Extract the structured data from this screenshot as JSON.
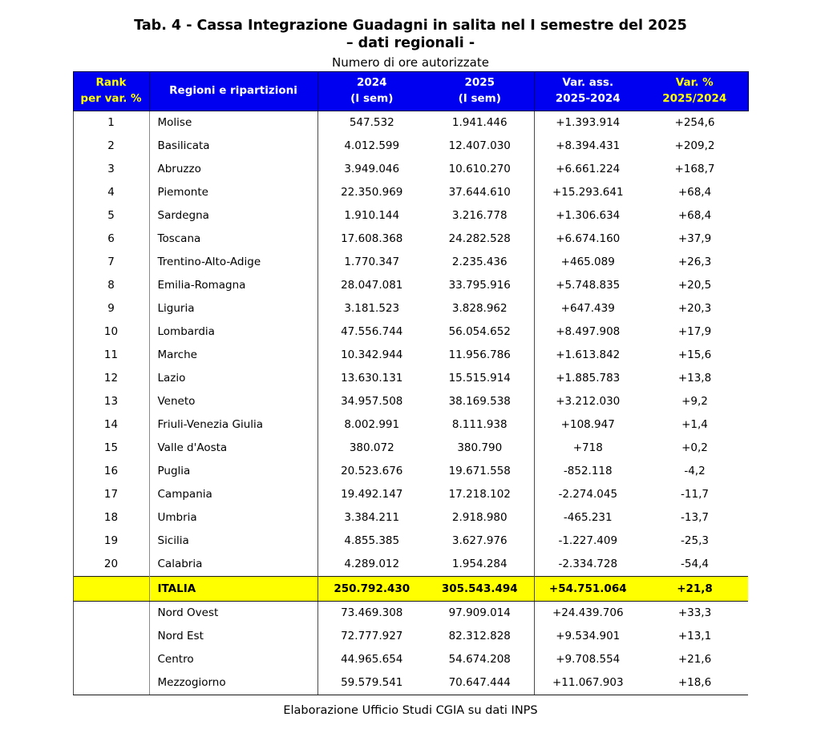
{
  "title_line1": "Tab. 4 - Cassa Integrazione Guadagni in salita nel I semestre del 2025",
  "title_line2": "– dati regionali -",
  "subtitle": "Numero di ore autorizzate",
  "source": "Elaborazione Ufficio Studi CGIA su dati INPS",
  "colors": {
    "header_bg": "#0000F0",
    "header_text": "#FFFFFF",
    "header_accent_text": "#FFFF00",
    "total_row_bg": "#FFFF00",
    "body_text": "#000000",
    "border": "#4A4A4A"
  },
  "chart_data": {
    "type": "table",
    "title": "Tab. 4 - Cassa Integrazione Guadagni in salita nel I semestre del 2025 – dati regionali -",
    "units": "Numero di ore autorizzate",
    "source": "Elaborazione Ufficio Studi CGIA su dati INPS",
    "header": {
      "rank": [
        "Rank",
        "per var. %"
      ],
      "region": "Regioni e ripartizioni",
      "y2024": [
        "2024",
        "(I sem)"
      ],
      "y2025": [
        "2025",
        "(I sem)"
      ],
      "var_ass": [
        "Var. ass.",
        "2025-2024"
      ],
      "var_pct": [
        "Var. %",
        "2025/2024"
      ]
    },
    "region_rows": [
      {
        "rank": "1",
        "name": "Molise",
        "y2024": "547.532",
        "y2025": "1.941.446",
        "var_ass": "+1.393.914",
        "var_pct": "+254,6"
      },
      {
        "rank": "2",
        "name": "Basilicata",
        "y2024": "4.012.599",
        "y2025": "12.407.030",
        "var_ass": "+8.394.431",
        "var_pct": "+209,2"
      },
      {
        "rank": "3",
        "name": "Abruzzo",
        "y2024": "3.949.046",
        "y2025": "10.610.270",
        "var_ass": "+6.661.224",
        "var_pct": "+168,7"
      },
      {
        "rank": "4",
        "name": "Piemonte",
        "y2024": "22.350.969",
        "y2025": "37.644.610",
        "var_ass": "+15.293.641",
        "var_pct": "+68,4"
      },
      {
        "rank": "5",
        "name": "Sardegna",
        "y2024": "1.910.144",
        "y2025": "3.216.778",
        "var_ass": "+1.306.634",
        "var_pct": "+68,4"
      },
      {
        "rank": "6",
        "name": "Toscana",
        "y2024": "17.608.368",
        "y2025": "24.282.528",
        "var_ass": "+6.674.160",
        "var_pct": "+37,9"
      },
      {
        "rank": "7",
        "name": "Trentino-Alto-Adige",
        "y2024": "1.770.347",
        "y2025": "2.235.436",
        "var_ass": "+465.089",
        "var_pct": "+26,3"
      },
      {
        "rank": "8",
        "name": "Emilia-Romagna",
        "y2024": "28.047.081",
        "y2025": "33.795.916",
        "var_ass": "+5.748.835",
        "var_pct": "+20,5"
      },
      {
        "rank": "9",
        "name": "Liguria",
        "y2024": "3.181.523",
        "y2025": "3.828.962",
        "var_ass": "+647.439",
        "var_pct": "+20,3"
      },
      {
        "rank": "10",
        "name": "Lombardia",
        "y2024": "47.556.744",
        "y2025": "56.054.652",
        "var_ass": "+8.497.908",
        "var_pct": "+17,9"
      },
      {
        "rank": "11",
        "name": "Marche",
        "y2024": "10.342.944",
        "y2025": "11.956.786",
        "var_ass": "+1.613.842",
        "var_pct": "+15,6"
      },
      {
        "rank": "12",
        "name": "Lazio",
        "y2024": "13.630.131",
        "y2025": "15.515.914",
        "var_ass": "+1.885.783",
        "var_pct": "+13,8"
      },
      {
        "rank": "13",
        "name": "Veneto",
        "y2024": "34.957.508",
        "y2025": "38.169.538",
        "var_ass": "+3.212.030",
        "var_pct": "+9,2"
      },
      {
        "rank": "14",
        "name": "Friuli-Venezia Giulia",
        "y2024": "8.002.991",
        "y2025": "8.111.938",
        "var_ass": "+108.947",
        "var_pct": "+1,4"
      },
      {
        "rank": "15",
        "name": "Valle d'Aosta",
        "y2024": "380.072",
        "y2025": "380.790",
        "var_ass": "+718",
        "var_pct": "+0,2"
      },
      {
        "rank": "16",
        "name": "Puglia",
        "y2024": "20.523.676",
        "y2025": "19.671.558",
        "var_ass": "-852.118",
        "var_pct": "-4,2"
      },
      {
        "rank": "17",
        "name": "Campania",
        "y2024": "19.492.147",
        "y2025": "17.218.102",
        "var_ass": "-2.274.045",
        "var_pct": "-11,7"
      },
      {
        "rank": "18",
        "name": "Umbria",
        "y2024": "3.384.211",
        "y2025": "2.918.980",
        "var_ass": "-465.231",
        "var_pct": "-13,7"
      },
      {
        "rank": "19",
        "name": "Sicilia",
        "y2024": "4.855.385",
        "y2025": "3.627.976",
        "var_ass": "-1.227.409",
        "var_pct": "-25,3"
      },
      {
        "rank": "20",
        "name": "Calabria",
        "y2024": "4.289.012",
        "y2025": "1.954.284",
        "var_ass": "-2.334.728",
        "var_pct": "-54,4"
      }
    ],
    "total_row": {
      "rank": "",
      "name": "ITALIA",
      "y2024": "250.792.430",
      "y2025": "305.543.494",
      "var_ass": "+54.751.064",
      "var_pct": "+21,8"
    },
    "area_rows": [
      {
        "rank": "",
        "name": "Nord Ovest",
        "y2024": "73.469.308",
        "y2025": "97.909.014",
        "var_ass": "+24.439.706",
        "var_pct": "+33,3"
      },
      {
        "rank": "",
        "name": "Nord Est",
        "y2024": "72.777.927",
        "y2025": "82.312.828",
        "var_ass": "+9.534.901",
        "var_pct": "+13,1"
      },
      {
        "rank": "",
        "name": "Centro",
        "y2024": "44.965.654",
        "y2025": "54.674.208",
        "var_ass": "+9.708.554",
        "var_pct": "+21,6"
      },
      {
        "rank": "",
        "name": "Mezzogiorno",
        "y2024": "59.579.541",
        "y2025": "70.647.444",
        "var_ass": "+11.067.903",
        "var_pct": "+18,6"
      }
    ]
  }
}
